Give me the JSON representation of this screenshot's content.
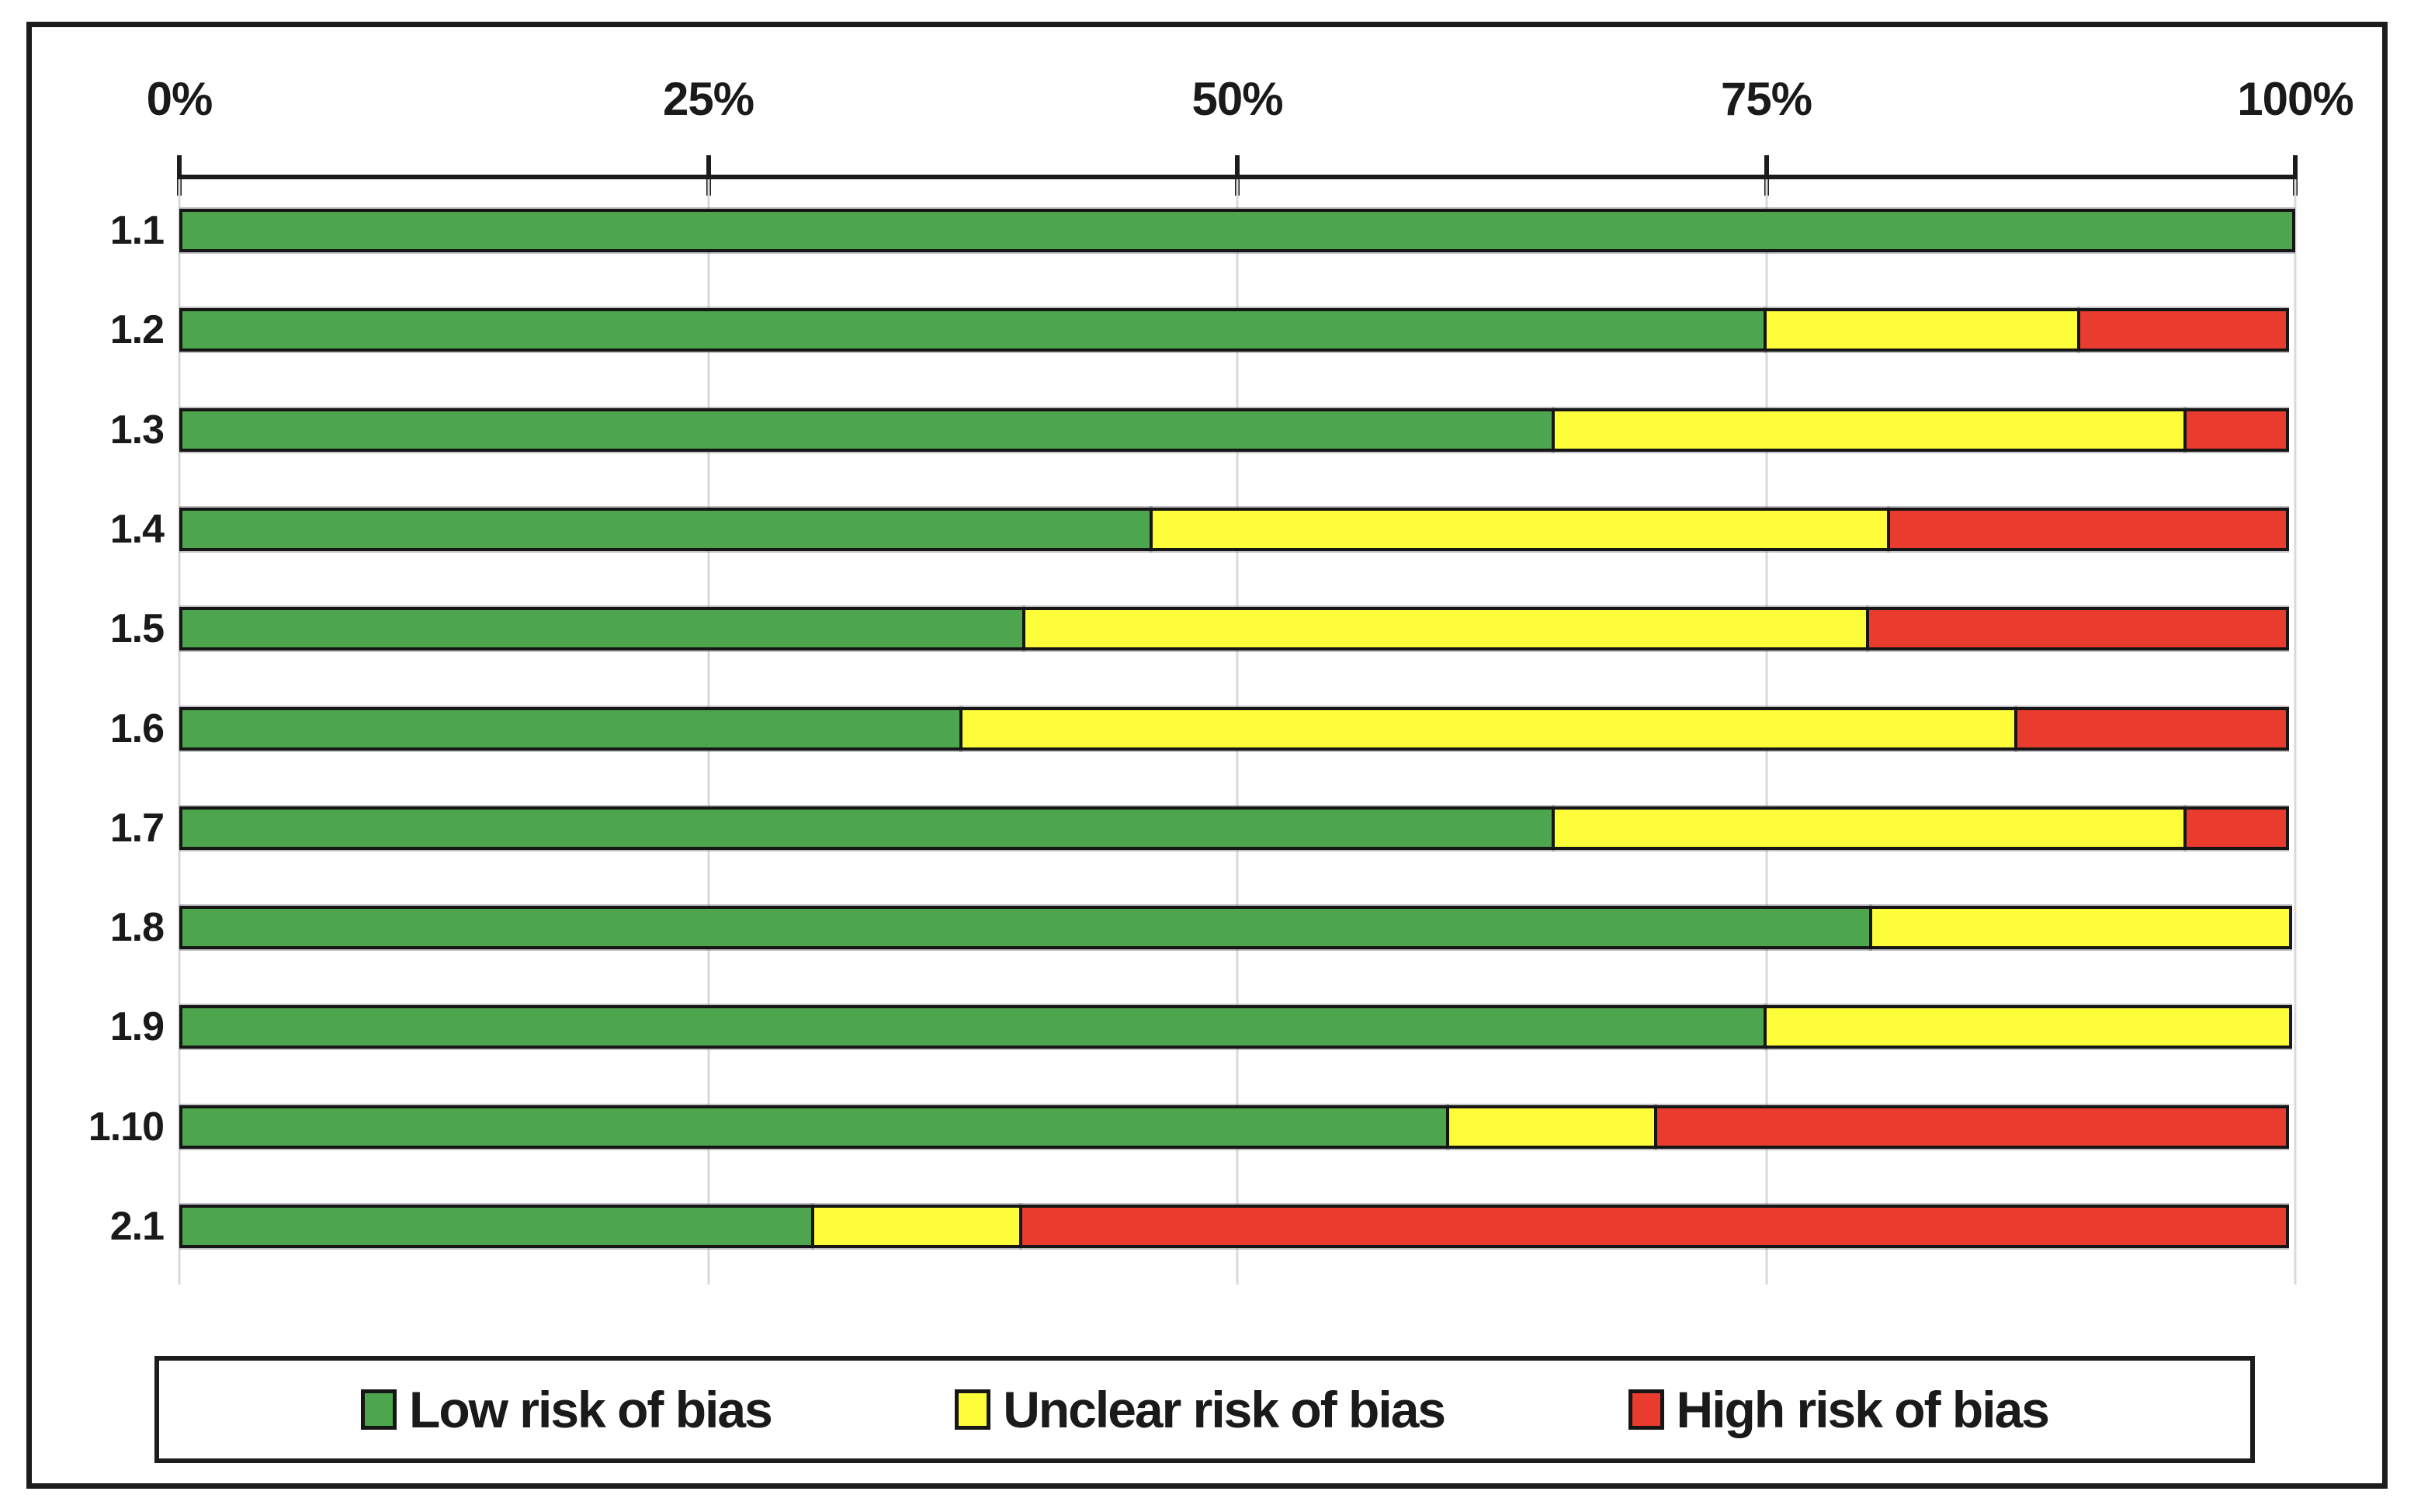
{
  "figure": {
    "type": "risk-of-bias-summary-figure",
    "background": "#ffffff",
    "frame_border_color": "#1c1c1c"
  },
  "colors": {
    "low": "#4DA64D",
    "unclear": "#FDFD3A",
    "high": "#E93B2E",
    "segment_outline": "#161616",
    "gridline": "#d9d9d9",
    "axis": "#1c1c1c"
  },
  "axis": {
    "tick_labels": [
      "0%",
      "25%",
      "50%",
      "75%",
      "100%"
    ],
    "tick_values": [
      0,
      25,
      50,
      75,
      100
    ]
  },
  "legend": {
    "items": [
      {
        "label": "Low risk of bias",
        "color": "#4DA64D"
      },
      {
        "label": "Unclear risk of bias",
        "color": "#FDFD3A"
      },
      {
        "label": "High risk of bias",
        "color": "#E93B2E"
      }
    ]
  },
  "chart_data": {
    "type": "bar",
    "orientation": "horizontal",
    "stacked": true,
    "title": "",
    "xlabel": "",
    "ylabel": "",
    "xlim": [
      0,
      100
    ],
    "grid": true,
    "legend_position": "bottom",
    "categories": [
      "1.1",
      "1.2",
      "1.3",
      "1.4",
      "1.5",
      "1.6",
      "1.7",
      "1.8",
      "1.9",
      "1.10",
      "2.1"
    ],
    "series": [
      {
        "name": "Low risk of bias",
        "color": "#4DA64D",
        "values": [
          100,
          75,
          65,
          46,
          40,
          37,
          65,
          80,
          75,
          60,
          30
        ]
      },
      {
        "name": "Unclear risk of bias",
        "color": "#FDFD3A",
        "values": [
          0,
          15,
          30,
          35,
          40,
          50,
          30,
          20,
          25,
          10,
          10
        ]
      },
      {
        "name": "High risk of bias",
        "color": "#E93B2E",
        "values": [
          0,
          10,
          5,
          19,
          20,
          13,
          5,
          0,
          0,
          30,
          60
        ]
      }
    ]
  },
  "layout_notes": {
    "units": "percent of item assessments"
  }
}
